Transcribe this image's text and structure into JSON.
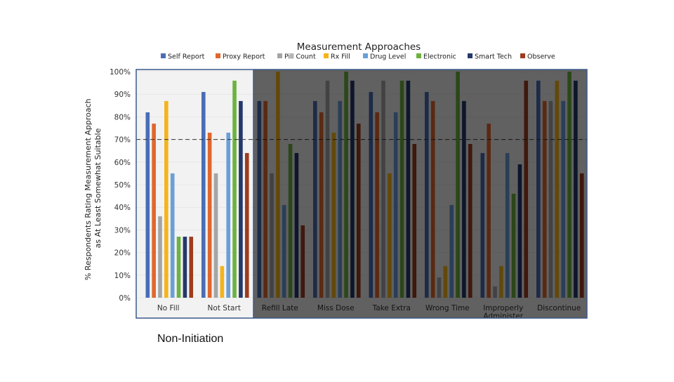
{
  "caption": "Non-Initiation",
  "chart_data": {
    "type": "bar",
    "title": "Measurement Approaches",
    "ylabel_lines": [
      "% Respondents Rating Measurement Approach",
      "as At Least Somewhat Suitable"
    ],
    "xlabel": "",
    "ylim": [
      0,
      100
    ],
    "yticks": [
      0,
      10,
      20,
      30,
      40,
      50,
      60,
      70,
      80,
      90,
      100
    ],
    "ytick_labels": [
      "0%",
      "10%",
      "20%",
      "30%",
      "40%",
      "50%",
      "60%",
      "70%",
      "80%",
      "90%",
      "100%"
    ],
    "reference_line": 70,
    "highlight_categories": [
      "No Fill",
      "Not Start"
    ],
    "dimmed_categories": [
      "Refill Late",
      "Miss Dose",
      "Take Extra",
      "Wrong Time",
      "Improperly Administer",
      "Discontinue"
    ],
    "categories": [
      "No Fill",
      "Not Start",
      "Refill Late",
      "Miss Dose",
      "Take Extra",
      "Wrong Time",
      "Improperly Administer",
      "Discontinue"
    ],
    "category_labels": [
      [
        "No Fill"
      ],
      [
        "Not Start"
      ],
      [
        "Refill Late"
      ],
      [
        "Miss Dose"
      ],
      [
        "Take Extra"
      ],
      [
        "Wrong Time"
      ],
      [
        "Improperly",
        "Administer"
      ],
      [
        "Discontinue"
      ]
    ],
    "series": [
      {
        "name": "Self Report",
        "color": "#4a6db5",
        "values": [
          82,
          91,
          87,
          87,
          91,
          91,
          64,
          96
        ]
      },
      {
        "name": "Proxy Report",
        "color": "#e0662e",
        "values": [
          77,
          73,
          87,
          82,
          82,
          87,
          77,
          87
        ]
      },
      {
        "name": "Pill Count",
        "color": "#a5a5a5",
        "values": [
          36,
          55,
          55,
          96,
          96,
          9,
          5,
          87
        ]
      },
      {
        "name": "Rx Fill",
        "color": "#f4b41a",
        "values": [
          87,
          14,
          100,
          73,
          55,
          14,
          14,
          96
        ]
      },
      {
        "name": "Drug Level",
        "color": "#6a9fd8",
        "values": [
          55,
          73,
          41,
          87,
          82,
          41,
          64,
          87
        ]
      },
      {
        "name": "Electronic",
        "color": "#6cb23f",
        "values": [
          27,
          96,
          68,
          100,
          96,
          100,
          46,
          100
        ]
      },
      {
        "name": "Smart Tech",
        "color": "#25386b",
        "values": [
          27,
          87,
          64,
          96,
          96,
          87,
          59,
          96
        ]
      },
      {
        "name": "Observe",
        "color": "#9e3c1e",
        "values": [
          27,
          64,
          32,
          77,
          68,
          68,
          96,
          55
        ]
      }
    ]
  }
}
